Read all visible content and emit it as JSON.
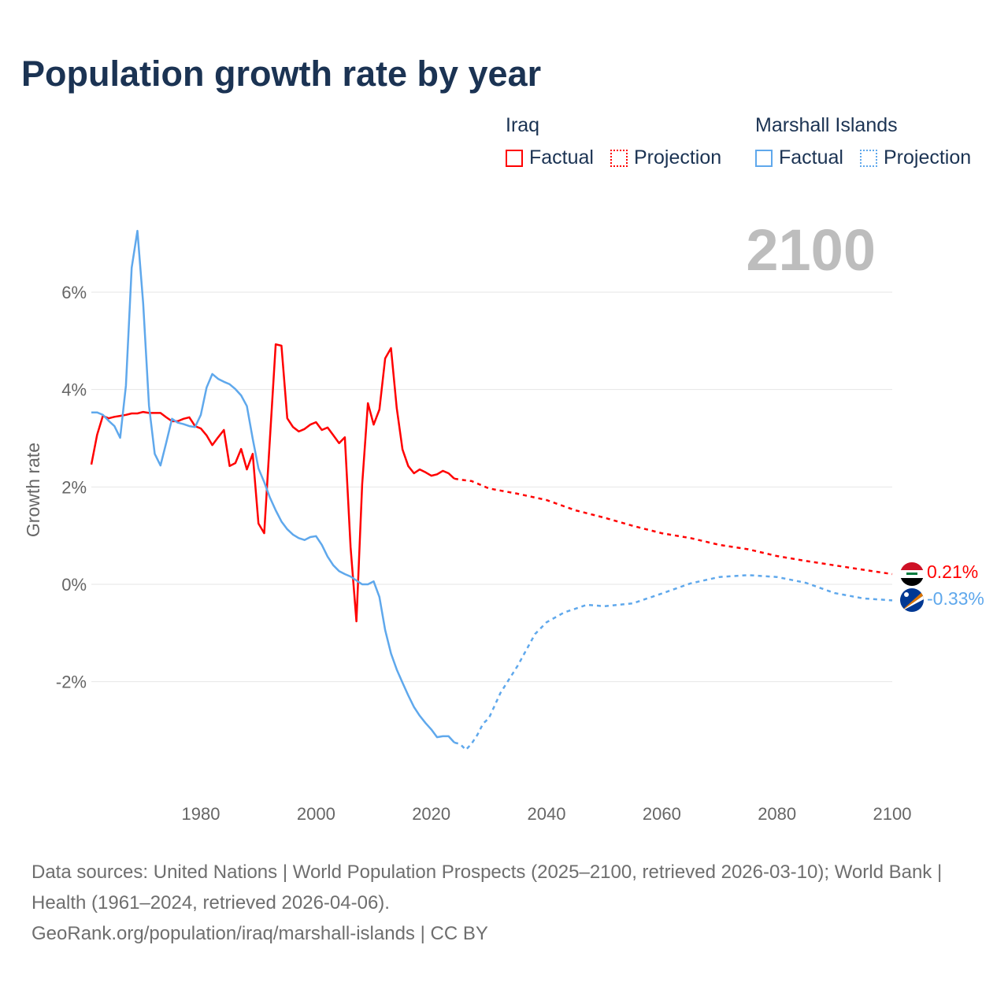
{
  "title": "Population growth rate by year",
  "legend": {
    "groups": [
      {
        "name": "Iraq",
        "color": "#ff0000",
        "items": [
          "Factual",
          "Projection"
        ]
      },
      {
        "name": "Marshall Islands",
        "color": "#5fa8ec",
        "items": [
          "Factual",
          "Projection"
        ]
      }
    ]
  },
  "chart_data": {
    "type": "line",
    "title": "Population growth rate by year",
    "ylabel": "Growth rate",
    "xlabel": "",
    "current_year_label": "2100",
    "xlim": [
      1961,
      2100
    ],
    "ylim": [
      -4,
      7.5
    ],
    "x_ticks": [
      "1980",
      "2000",
      "2020",
      "2040",
      "2060",
      "2080",
      "2100"
    ],
    "y_ticks": [
      {
        "v": 6,
        "label": "6%"
      },
      {
        "v": 4,
        "label": "4%"
      },
      {
        "v": 2,
        "label": "2%"
      },
      {
        "v": 0,
        "label": "0%"
      },
      {
        "v": -2,
        "label": "-2%"
      }
    ],
    "grid": true,
    "series": [
      {
        "name": "Iraq",
        "color": "#ff0000",
        "end_label": "0.21%",
        "factual": [
          [
            1961,
            2.46
          ],
          [
            1962,
            3.07
          ],
          [
            1963,
            3.46
          ],
          [
            1964,
            3.41
          ],
          [
            1965,
            3.44
          ],
          [
            1966,
            3.46
          ],
          [
            1967,
            3.48
          ],
          [
            1968,
            3.51
          ],
          [
            1969,
            3.51
          ],
          [
            1970,
            3.54
          ],
          [
            1971,
            3.52
          ],
          [
            1972,
            3.52
          ],
          [
            1973,
            3.52
          ],
          [
            1974,
            3.43
          ],
          [
            1975,
            3.35
          ],
          [
            1976,
            3.35
          ],
          [
            1977,
            3.4
          ],
          [
            1978,
            3.43
          ],
          [
            1979,
            3.25
          ],
          [
            1980,
            3.2
          ],
          [
            1981,
            3.06
          ],
          [
            1982,
            2.86
          ],
          [
            1983,
            3.02
          ],
          [
            1984,
            3.17
          ],
          [
            1985,
            2.43
          ],
          [
            1986,
            2.49
          ],
          [
            1987,
            2.78
          ],
          [
            1988,
            2.36
          ],
          [
            1989,
            2.68
          ],
          [
            1990,
            1.25
          ],
          [
            1991,
            1.05
          ],
          [
            1992,
            3.0
          ],
          [
            1993,
            4.93
          ],
          [
            1994,
            4.9
          ],
          [
            1995,
            3.41
          ],
          [
            1996,
            3.23
          ],
          [
            1997,
            3.14
          ],
          [
            1998,
            3.19
          ],
          [
            1999,
            3.28
          ],
          [
            2000,
            3.33
          ],
          [
            2001,
            3.17
          ],
          [
            2002,
            3.22
          ],
          [
            2003,
            3.06
          ],
          [
            2004,
            2.9
          ],
          [
            2005,
            3.02
          ],
          [
            2006,
            0.76
          ],
          [
            2007,
            -0.76
          ],
          [
            2008,
            2.05
          ],
          [
            2009,
            3.72
          ],
          [
            2010,
            3.28
          ],
          [
            2011,
            3.59
          ],
          [
            2012,
            4.64
          ],
          [
            2013,
            4.85
          ],
          [
            2014,
            3.62
          ],
          [
            2015,
            2.77
          ],
          [
            2016,
            2.43
          ],
          [
            2017,
            2.28
          ],
          [
            2018,
            2.36
          ],
          [
            2019,
            2.3
          ],
          [
            2020,
            2.23
          ],
          [
            2021,
            2.26
          ],
          [
            2022,
            2.33
          ],
          [
            2023,
            2.28
          ],
          [
            2024,
            2.17
          ]
        ],
        "projection": [
          [
            2024,
            2.17
          ],
          [
            2025,
            2.15
          ],
          [
            2027,
            2.12
          ],
          [
            2030,
            1.97
          ],
          [
            2035,
            1.86
          ],
          [
            2040,
            1.73
          ],
          [
            2045,
            1.52
          ],
          [
            2050,
            1.37
          ],
          [
            2055,
            1.2
          ],
          [
            2060,
            1.05
          ],
          [
            2065,
            0.95
          ],
          [
            2070,
            0.81
          ],
          [
            2075,
            0.72
          ],
          [
            2080,
            0.58
          ],
          [
            2085,
            0.48
          ],
          [
            2090,
            0.39
          ],
          [
            2095,
            0.3
          ],
          [
            2100,
            0.21
          ]
        ]
      },
      {
        "name": "Marshall Islands",
        "color": "#5fa8ec",
        "end_label": "-0.33%",
        "factual": [
          [
            1961,
            3.53
          ],
          [
            1962,
            3.53
          ],
          [
            1963,
            3.48
          ],
          [
            1964,
            3.36
          ],
          [
            1965,
            3.25
          ],
          [
            1966,
            3.01
          ],
          [
            1967,
            4.08
          ],
          [
            1968,
            6.5
          ],
          [
            1969,
            7.26
          ],
          [
            1970,
            5.77
          ],
          [
            1971,
            3.67
          ],
          [
            1972,
            2.68
          ],
          [
            1973,
            2.44
          ],
          [
            1974,
            2.91
          ],
          [
            1975,
            3.4
          ],
          [
            1976,
            3.32
          ],
          [
            1977,
            3.29
          ],
          [
            1978,
            3.25
          ],
          [
            1979,
            3.23
          ],
          [
            1980,
            3.48
          ],
          [
            1981,
            4.04
          ],
          [
            1982,
            4.32
          ],
          [
            1983,
            4.22
          ],
          [
            1984,
            4.16
          ],
          [
            1985,
            4.11
          ],
          [
            1986,
            4.01
          ],
          [
            1987,
            3.88
          ],
          [
            1988,
            3.66
          ],
          [
            1989,
            2.99
          ],
          [
            1990,
            2.38
          ],
          [
            1991,
            2.1
          ],
          [
            1992,
            1.78
          ],
          [
            1993,
            1.52
          ],
          [
            1994,
            1.29
          ],
          [
            1995,
            1.13
          ],
          [
            1996,
            1.02
          ],
          [
            1997,
            0.95
          ],
          [
            1998,
            0.91
          ],
          [
            1999,
            0.97
          ],
          [
            2000,
            0.99
          ],
          [
            2001,
            0.81
          ],
          [
            2002,
            0.57
          ],
          [
            2003,
            0.39
          ],
          [
            2004,
            0.27
          ],
          [
            2005,
            0.21
          ],
          [
            2006,
            0.16
          ],
          [
            2007,
            0.08
          ],
          [
            2008,
            0.0
          ],
          [
            2009,
            0.0
          ],
          [
            2010,
            0.06
          ],
          [
            2011,
            -0.26
          ],
          [
            2012,
            -0.94
          ],
          [
            2013,
            -1.42
          ],
          [
            2014,
            -1.75
          ],
          [
            2015,
            -2.02
          ],
          [
            2016,
            -2.28
          ],
          [
            2017,
            -2.52
          ],
          [
            2018,
            -2.7
          ],
          [
            2019,
            -2.85
          ],
          [
            2020,
            -2.98
          ],
          [
            2021,
            -3.14
          ],
          [
            2022,
            -3.12
          ],
          [
            2023,
            -3.12
          ],
          [
            2024,
            -3.25
          ]
        ],
        "projection": [
          [
            2024,
            -3.25
          ],
          [
            2025,
            -3.28
          ],
          [
            2026,
            -3.4
          ],
          [
            2027,
            -3.27
          ],
          [
            2028,
            -3.09
          ],
          [
            2029,
            -2.86
          ],
          [
            2030,
            -2.75
          ],
          [
            2032,
            -2.23
          ],
          [
            2035,
            -1.67
          ],
          [
            2038,
            -1.02
          ],
          [
            2040,
            -0.78
          ],
          [
            2043,
            -0.58
          ],
          [
            2047,
            -0.42
          ],
          [
            2050,
            -0.45
          ],
          [
            2055,
            -0.39
          ],
          [
            2060,
            -0.19
          ],
          [
            2065,
            0.02
          ],
          [
            2070,
            0.15
          ],
          [
            2075,
            0.19
          ],
          [
            2080,
            0.15
          ],
          [
            2085,
            0.03
          ],
          [
            2090,
            -0.18
          ],
          [
            2095,
            -0.29
          ],
          [
            2100,
            -0.33
          ]
        ]
      }
    ]
  },
  "footer": {
    "sources": "Data sources: United Nations | World Population Prospects (2025–2100, retrieved 2026-03-10); World Bank | Health (1961–2024, retrieved 2026-04-06).",
    "credit": "GeoRank.org/population/iraq/marshall-islands | CC BY"
  }
}
